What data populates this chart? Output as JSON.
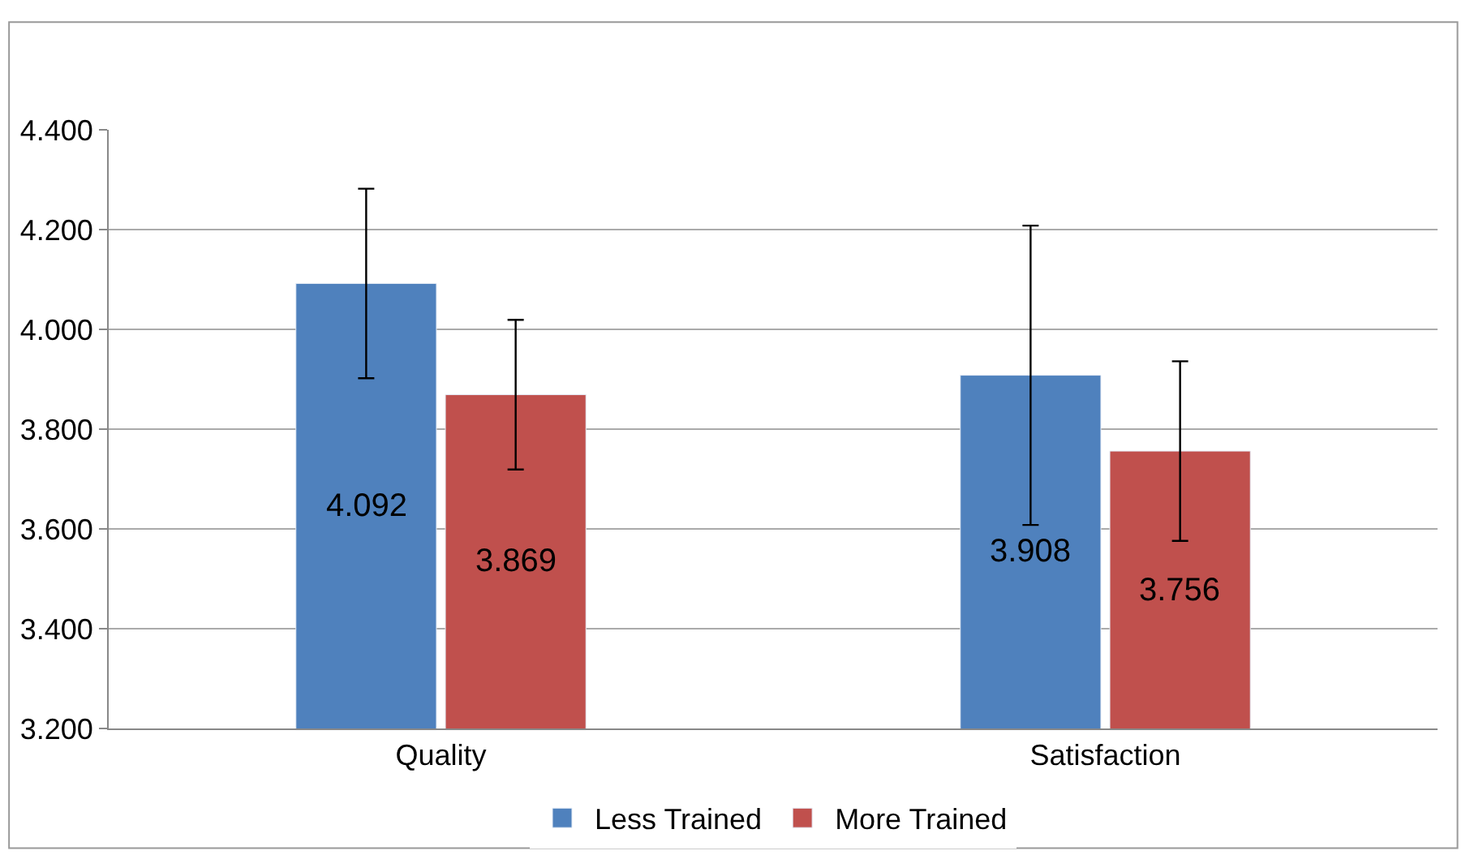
{
  "chart_data": {
    "type": "bar",
    "categories": [
      "Quality",
      "Satisfaction"
    ],
    "series": [
      {
        "name": "Less Trained",
        "color": "#4f81bd",
        "values": [
          4.092,
          3.908
        ],
        "errors": [
          0.19,
          0.3
        ]
      },
      {
        "name": "More Trained",
        "color": "#c0504d",
        "values": [
          3.869,
          3.756
        ],
        "errors": [
          0.15,
          0.18
        ]
      }
    ],
    "ylim": [
      3.2,
      4.4
    ],
    "yticks": [
      {
        "value": 3.2,
        "label": "3.200"
      },
      {
        "value": 3.4,
        "label": "3.400"
      },
      {
        "value": 3.6,
        "label": "3.600"
      },
      {
        "value": 3.8,
        "label": "3.800"
      },
      {
        "value": 4.0,
        "label": "4.000"
      },
      {
        "value": 4.2,
        "label": "4.200"
      },
      {
        "value": 4.4,
        "label": "4.400"
      }
    ],
    "grid": "y",
    "legend": "bottom",
    "data_labels": true
  }
}
